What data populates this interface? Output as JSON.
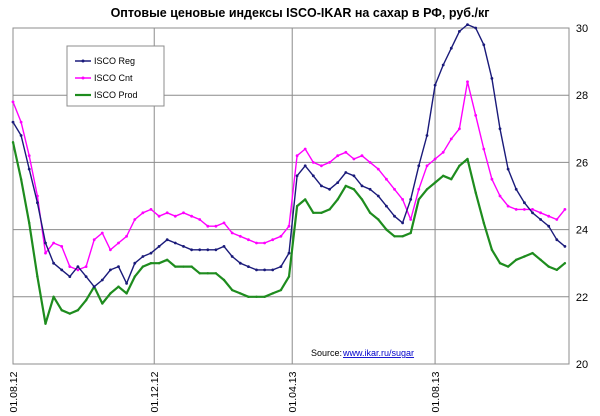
{
  "chart_data": {
    "type": "line",
    "title": "Оптовые ценовые индексы ISCO-IKAR на сахар в РФ, руб./кг",
    "xlabel": "",
    "ylabel": "",
    "ylim": [
      20,
      30
    ],
    "yticks": [
      20,
      22,
      24,
      26,
      28,
      30
    ],
    "x_tick_labels": [
      "01.08.12",
      "01.12.12",
      "01.04.13",
      "01.08.13"
    ],
    "x_tick_positions_weeks": [
      0,
      17.4,
      34.4,
      52
    ],
    "x_range_weeks": [
      0,
      68.5
    ],
    "grid": true,
    "legend_position": "top-left",
    "source_label": "Source:",
    "source_link": "www.ikar.ru/sugar",
    "x_weeks": [
      0,
      1,
      2,
      3,
      4,
      5,
      6,
      7,
      8,
      9,
      10,
      11,
      12,
      13,
      14,
      15,
      16,
      17,
      18,
      19,
      20,
      21,
      22,
      23,
      24,
      25,
      26,
      27,
      28,
      29,
      30,
      31,
      32,
      33,
      34,
      35,
      36,
      37,
      38,
      39,
      40,
      41,
      42,
      43,
      44,
      45,
      46,
      47,
      48,
      49,
      50,
      51,
      52,
      53,
      54,
      55,
      56,
      57,
      58,
      59,
      60,
      61,
      62,
      63,
      64,
      65,
      66,
      67,
      68
    ],
    "series": [
      {
        "name": "ISCO Reg",
        "color": "#1a1a7a",
        "values": [
          27.2,
          26.8,
          25.8,
          24.8,
          23.6,
          23.0,
          22.8,
          22.6,
          22.9,
          22.6,
          22.3,
          22.5,
          22.8,
          22.9,
          22.4,
          23.0,
          23.2,
          23.3,
          23.5,
          23.7,
          23.6,
          23.5,
          23.4,
          23.4,
          23.4,
          23.4,
          23.5,
          23.2,
          23.0,
          22.9,
          22.8,
          22.8,
          22.8,
          22.9,
          23.3,
          25.6,
          25.9,
          25.6,
          25.3,
          25.2,
          25.4,
          25.7,
          25.6,
          25.3,
          25.2,
          25.0,
          24.7,
          24.4,
          24.2,
          24.9,
          25.9,
          26.8,
          28.3,
          28.9,
          29.4,
          29.9,
          30.1,
          30.0,
          29.5,
          28.5,
          27.0,
          25.8,
          25.2,
          24.8,
          24.5,
          24.3,
          24.1,
          23.7,
          23.5
        ]
      },
      {
        "name": "ISCO Cnt",
        "color": "#ff00ff",
        "values": [
          27.8,
          27.2,
          26.2,
          25.0,
          23.3,
          23.6,
          23.5,
          22.9,
          22.8,
          22.9,
          23.7,
          23.9,
          23.4,
          23.6,
          23.8,
          24.3,
          24.5,
          24.6,
          24.4,
          24.5,
          24.4,
          24.5,
          24.4,
          24.3,
          24.1,
          24.1,
          24.2,
          23.9,
          23.8,
          23.7,
          23.6,
          23.6,
          23.7,
          23.8,
          24.1,
          26.2,
          26.4,
          26.0,
          25.9,
          26.0,
          26.2,
          26.3,
          26.1,
          26.2,
          26.0,
          25.8,
          25.5,
          25.2,
          24.9,
          24.3,
          25.2,
          25.9,
          26.1,
          26.3,
          26.7,
          27.0,
          28.4,
          27.4,
          26.4,
          25.5,
          25.0,
          24.7,
          24.6,
          24.6,
          24.6,
          24.5,
          24.4,
          24.3,
          24.6
        ]
      },
      {
        "name": "ISCO Prod",
        "color": "#1e8c1e",
        "values": [
          26.6,
          25.5,
          24.2,
          22.6,
          21.2,
          22.0,
          21.6,
          21.5,
          21.6,
          21.9,
          22.3,
          21.8,
          22.1,
          22.3,
          22.1,
          22.6,
          22.9,
          23.0,
          23.0,
          23.1,
          22.9,
          22.9,
          22.9,
          22.7,
          22.7,
          22.7,
          22.5,
          22.2,
          22.1,
          22.0,
          22.0,
          22.0,
          22.1,
          22.2,
          22.6,
          24.7,
          24.9,
          24.5,
          24.5,
          24.6,
          24.9,
          25.3,
          25.2,
          24.9,
          24.5,
          24.3,
          24.0,
          23.8,
          23.8,
          23.9,
          24.9,
          25.2,
          25.4,
          25.6,
          25.5,
          25.9,
          26.1,
          25.1,
          24.2,
          23.4,
          23.0,
          22.9,
          23.1,
          23.2,
          23.3,
          23.1,
          22.9,
          22.8,
          23.0
        ]
      }
    ]
  }
}
